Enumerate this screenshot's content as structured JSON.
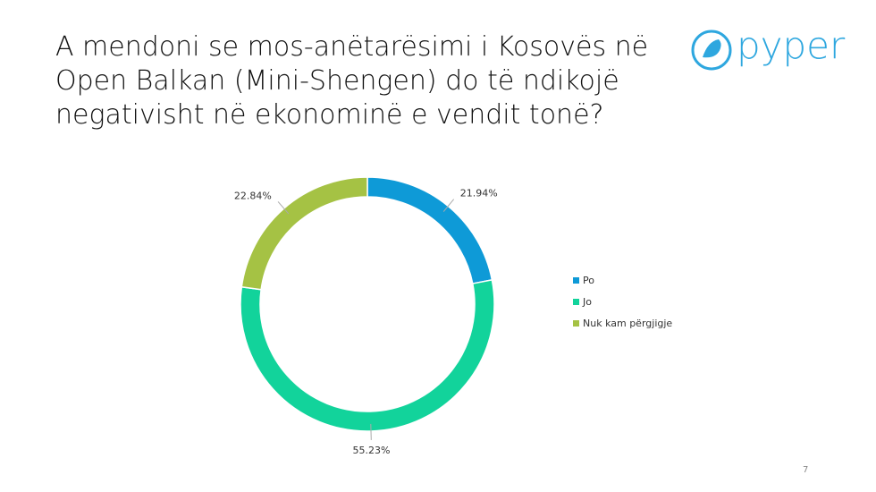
{
  "chart_data": {
    "type": "donut",
    "title": "A mendoni se mos-anëtarësimi i Kosovës në Open Balkan (Mini-Shengen) do të ndikojë negativisht në ekonominë e vendit tonë?",
    "categories": [
      "Po",
      "Jo",
      "Nuk kam përgjigje"
    ],
    "values": [
      21.94,
      55.23,
      22.84
    ],
    "value_labels": [
      "21.94%",
      "55.23%",
      "22.84%"
    ],
    "colors": [
      "#0e9ad7",
      "#12d39b",
      "#a5c244"
    ],
    "legend": "right"
  },
  "logo": "pyper",
  "page_number": "7"
}
